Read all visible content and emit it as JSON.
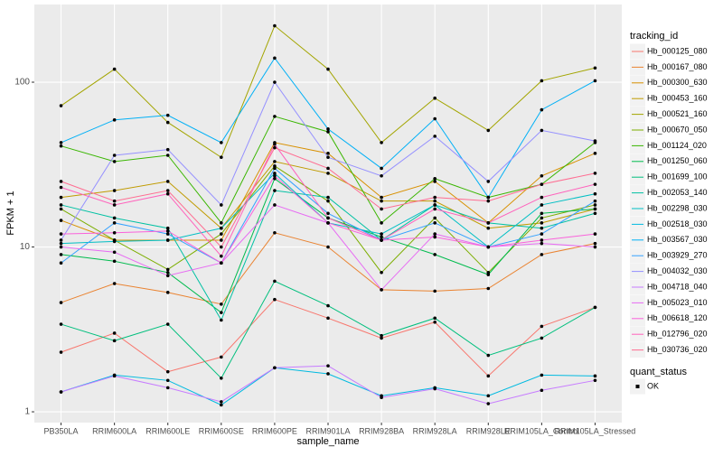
{
  "chart_data": {
    "type": "line",
    "log_y": true,
    "grid": true,
    "x_label": "sample_name",
    "y_label": "FPKM + 1",
    "legend_title": "tracking_id",
    "legend_position": "right",
    "point_color": "#000000",
    "shape_legend": {
      "title": "quant_status",
      "labels": [
        "OK"
      ]
    },
    "categories": [
      "PB350LA",
      "RRIM600LA",
      "RRIM600LE",
      "RRIM600SE",
      "RRIM600PE",
      "RRIM901LA",
      "RRIM928BA",
      "RRIM928LA",
      "RRIM928LE",
      "RRIM105LA_Control",
      "RRIM105LA_Stressed"
    ],
    "ylim": [
      0.86,
      296
    ],
    "yticks": [
      1,
      10,
      100
    ],
    "series": [
      {
        "name": "Hb_000125_080",
        "color": "#F8766D",
        "values": [
          2.3,
          3.0,
          1.75,
          2.15,
          4.8,
          3.7,
          2.8,
          3.5,
          1.65,
          3.3,
          4.3
        ]
      },
      {
        "name": "Hb_000167_080",
        "color": "#EA8331",
        "values": [
          4.6,
          6.0,
          5.3,
          4.5,
          12.2,
          10,
          5.5,
          5.4,
          5.6,
          9,
          10.5
        ]
      },
      {
        "name": "Hb_000300_630",
        "color": "#D89000",
        "values": [
          14.5,
          11,
          11,
          11,
          43,
          37,
          20,
          25,
          14,
          27,
          37
        ]
      },
      {
        "name": "Hb_000453_160",
        "color": "#C09B00",
        "values": [
          20,
          22,
          25,
          13,
          33,
          28,
          19,
          19,
          13,
          14,
          17
        ]
      },
      {
        "name": "Hb_000521_160",
        "color": "#A3A500",
        "values": [
          72,
          120,
          57,
          35,
          220,
          120,
          43,
          80,
          51,
          102,
          122
        ]
      },
      {
        "name": "Hb_000670_050",
        "color": "#7CAE00",
        "values": [
          17,
          11,
          7.3,
          12,
          31,
          19,
          7,
          15,
          7,
          15,
          18
        ]
      },
      {
        "name": "Hb_001124_020",
        "color": "#39B600",
        "values": [
          41,
          33,
          36,
          14,
          62,
          50,
          14,
          26,
          20,
          24,
          43
        ]
      },
      {
        "name": "Hb_001250_060",
        "color": "#00BB4E",
        "values": [
          9,
          8.2,
          7,
          4,
          26,
          15,
          11.5,
          9,
          6.8,
          16,
          17
        ]
      },
      {
        "name": "Hb_001699_100",
        "color": "#00BF7D",
        "values": [
          3.4,
          2.7,
          3.4,
          1.6,
          6.2,
          4.4,
          2.9,
          3.7,
          2.2,
          2.8,
          4.3
        ]
      },
      {
        "name": "Hb_002053_140",
        "color": "#00C1A3",
        "values": [
          18,
          15,
          13,
          3.6,
          22,
          20,
          11,
          18,
          14,
          13,
          16
        ]
      },
      {
        "name": "Hb_002298_030",
        "color": "#00BFC4",
        "values": [
          10.5,
          10.8,
          11,
          13,
          28,
          14,
          12,
          18,
          10,
          18,
          21
        ]
      },
      {
        "name": "Hb_002518_030",
        "color": "#00BAE0",
        "values": [
          1.32,
          1.67,
          1.55,
          1.1,
          1.85,
          1.7,
          1.25,
          1.4,
          1.25,
          1.67,
          1.65
        ]
      },
      {
        "name": "Hb_003567_030",
        "color": "#00B0F6",
        "values": [
          43,
          59,
          63,
          43,
          140,
          52,
          30,
          60,
          20,
          68,
          102
        ]
      },
      {
        "name": "Hb_003929_270",
        "color": "#35A2FF",
        "values": [
          8,
          14,
          12,
          8,
          30,
          16,
          11,
          14,
          10,
          12,
          19
        ]
      },
      {
        "name": "Hb_004032_030",
        "color": "#9590FF",
        "values": [
          11,
          36,
          39,
          18,
          100,
          35,
          27,
          47,
          25,
          51,
          44
        ]
      },
      {
        "name": "Hb_004718_040",
        "color": "#C77CFF",
        "values": [
          1.32,
          1.65,
          1.4,
          1.15,
          1.85,
          1.9,
          1.22,
          1.38,
          1.12,
          1.35,
          1.55
        ]
      },
      {
        "name": "Hb_005023_010",
        "color": "#E76BF3",
        "values": [
          10,
          9.3,
          6.7,
          8,
          18,
          14,
          5.5,
          12,
          10,
          10.5,
          10
        ]
      },
      {
        "name": "Hb_006618_120",
        "color": "#FA62DB",
        "values": [
          12,
          12.2,
          12.5,
          8,
          27,
          14,
          11,
          11.5,
          10,
          11,
          12
        ]
      },
      {
        "name": "Hb_012796_020",
        "color": "#FF62BC",
        "values": [
          23,
          18,
          21,
          8.8,
          42,
          15,
          11,
          17,
          14,
          20,
          24
        ]
      },
      {
        "name": "Hb_030736_020",
        "color": "#FF6C91",
        "values": [
          25,
          19,
          22,
          10,
          40,
          30,
          17,
          20,
          19,
          24,
          28
        ]
      }
    ]
  }
}
